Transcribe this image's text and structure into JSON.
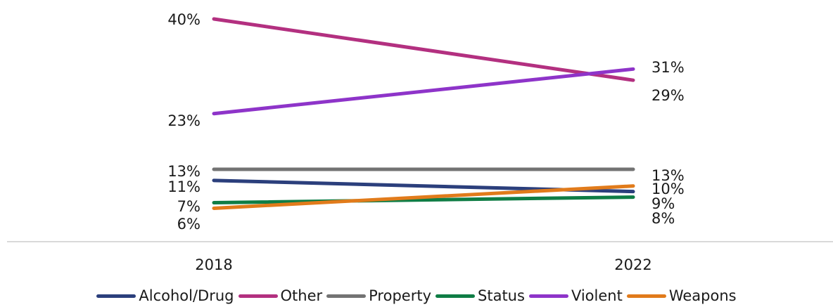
{
  "chart_data": {
    "type": "line",
    "x": [
      "2018",
      "2022"
    ],
    "series": [
      {
        "name": "Alcohol/Drug",
        "color": "#2b3f7c",
        "values": [
          11,
          9
        ],
        "labels": [
          "11%",
          "9%"
        ]
      },
      {
        "name": "Other",
        "color": "#b33080",
        "values": [
          40,
          29
        ],
        "labels": [
          "40%",
          "29%"
        ]
      },
      {
        "name": "Property",
        "color": "#737373",
        "values": [
          13,
          13
        ],
        "labels": [
          "13%",
          "13%"
        ]
      },
      {
        "name": "Status",
        "color": "#0f7d45",
        "values": [
          7,
          8
        ],
        "labels": [
          "7%",
          "8%"
        ]
      },
      {
        "name": "Violent",
        "color": "#8e34c9",
        "values": [
          23,
          31
        ],
        "labels": [
          "23%",
          "31%"
        ]
      },
      {
        "name": "Weapons",
        "color": "#e17b1b",
        "values": [
          6,
          10
        ],
        "labels": [
          "6%",
          "10%"
        ]
      }
    ],
    "ylim": [
      0,
      42
    ],
    "grid": false,
    "legend_position": "bottom"
  }
}
